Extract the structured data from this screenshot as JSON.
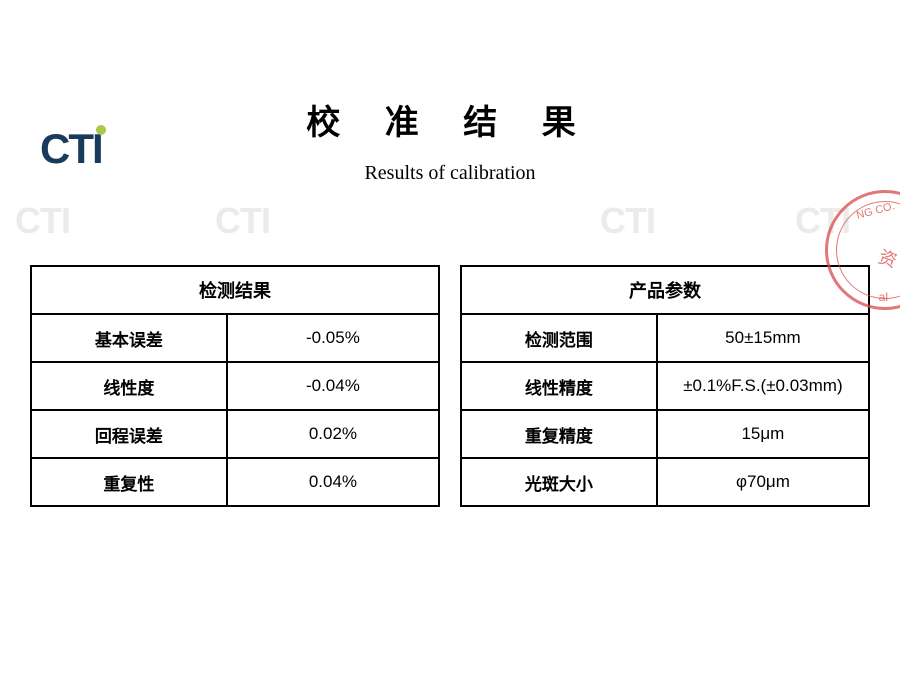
{
  "logo": {
    "text": "CTI"
  },
  "title": {
    "cn": "校 准 结 果",
    "en": "Results of calibration"
  },
  "watermark": "CTI",
  "stamp": {
    "line1": "NG CO.",
    "line2": "al",
    "line3": "资"
  },
  "left_table": {
    "header": "检测结果",
    "rows": [
      {
        "label": "基本误差",
        "value": "-0.05%"
      },
      {
        "label": "线性度",
        "value": "-0.04%"
      },
      {
        "label": "回程误差",
        "value": "0.02%"
      },
      {
        "label": "重复性",
        "value": "0.04%"
      }
    ]
  },
  "right_table": {
    "header": "产品参数",
    "rows": [
      {
        "label": "检测范围",
        "value": "50±15mm"
      },
      {
        "label": "线性精度",
        "value": "±0.1%F.S.(±0.03mm)"
      },
      {
        "label": "重复精度",
        "value": "15μm"
      },
      {
        "label": "光斑大小",
        "value": "φ70μm"
      }
    ]
  }
}
